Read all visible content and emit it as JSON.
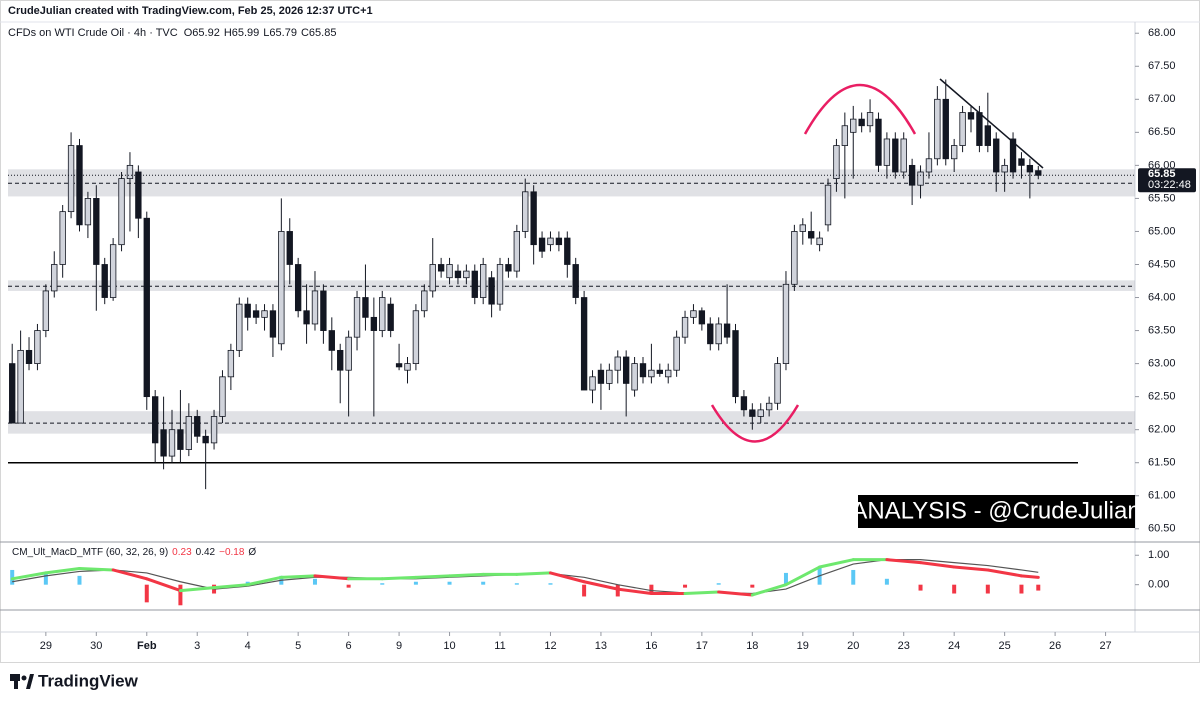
{
  "header": "CrudeJulian created with TradingView.com, Feb 25, 2026 12:37 UTC+1",
  "footer": {
    "brand": "TradingView"
  },
  "chart_data": {
    "type": "candlestick",
    "symbol": "CFDs on WTI Crude Oil · 4h · TVC",
    "ohlc_fields": [
      "O",
      "H",
      "L",
      "C"
    ],
    "ohlc": [
      [
        63.0,
        63.3,
        62.1,
        62.1
      ],
      [
        62.1,
        63.5,
        62.1,
        63.2
      ],
      [
        63.2,
        63.4,
        62.9,
        63.0
      ],
      [
        63.0,
        63.6,
        62.9,
        63.5
      ],
      [
        63.5,
        64.2,
        63.4,
        64.1
      ],
      [
        64.1,
        64.7,
        64.0,
        64.5
      ],
      [
        64.5,
        65.4,
        64.3,
        65.3
      ],
      [
        65.3,
        66.5,
        65.2,
        66.3
      ],
      [
        66.3,
        66.4,
        65.0,
        65.1
      ],
      [
        65.1,
        65.6,
        64.9,
        65.5
      ],
      [
        65.5,
        65.7,
        63.8,
        64.5
      ],
      [
        64.5,
        64.6,
        63.9,
        64.0
      ],
      [
        64.0,
        64.9,
        63.95,
        64.8
      ],
      [
        64.8,
        65.9,
        64.7,
        65.8
      ],
      [
        65.8,
        66.2,
        65.0,
        66.0
      ],
      [
        65.9,
        66.0,
        64.9,
        65.2
      ],
      [
        65.2,
        65.3,
        62.3,
        62.5
      ],
      [
        62.5,
        62.6,
        61.5,
        61.8
      ],
      [
        62.0,
        62.5,
        61.4,
        61.6
      ],
      [
        61.6,
        62.3,
        61.5,
        62.0
      ],
      [
        62.0,
        62.6,
        61.5,
        61.7
      ],
      [
        61.7,
        62.4,
        61.6,
        62.2
      ],
      [
        62.2,
        62.3,
        61.8,
        61.9
      ],
      [
        61.9,
        62.0,
        61.1,
        61.8
      ],
      [
        61.8,
        62.3,
        61.7,
        62.2
      ],
      [
        62.2,
        62.9,
        62.1,
        62.8
      ],
      [
        62.8,
        63.3,
        62.6,
        63.2
      ],
      [
        63.2,
        64.0,
        63.1,
        63.9
      ],
      [
        63.9,
        64.0,
        63.5,
        63.7
      ],
      [
        63.8,
        63.9,
        63.6,
        63.7
      ],
      [
        63.7,
        63.9,
        63.5,
        63.8
      ],
      [
        63.8,
        63.9,
        63.1,
        63.4
      ],
      [
        63.3,
        65.5,
        63.2,
        65.0
      ],
      [
        65.0,
        65.2,
        64.2,
        64.5
      ],
      [
        64.5,
        64.6,
        63.7,
        63.8
      ],
      [
        63.8,
        64.2,
        63.3,
        63.6
      ],
      [
        63.6,
        64.4,
        63.5,
        64.1
      ],
      [
        64.1,
        64.2,
        63.3,
        63.5
      ],
      [
        63.5,
        63.7,
        62.9,
        63.2
      ],
      [
        63.2,
        63.3,
        62.4,
        62.9
      ],
      [
        62.9,
        63.5,
        62.2,
        63.4
      ],
      [
        63.4,
        64.1,
        63.2,
        64.0
      ],
      [
        64.0,
        64.5,
        63.5,
        63.7
      ],
      [
        63.7,
        64.0,
        62.2,
        63.5
      ],
      [
        63.5,
        64.1,
        63.4,
        64.0
      ],
      [
        63.9,
        64.0,
        63.4,
        63.5
      ],
      [
        63.0,
        63.3,
        62.9,
        62.95
      ],
      [
        62.9,
        63.1,
        62.7,
        63.0
      ],
      [
        63.0,
        63.9,
        62.9,
        63.8
      ],
      [
        63.8,
        64.2,
        63.7,
        64.1
      ],
      [
        64.1,
        64.9,
        64.0,
        64.5
      ],
      [
        64.5,
        64.6,
        64.3,
        64.4
      ],
      [
        64.3,
        64.6,
        64.2,
        64.5
      ],
      [
        64.4,
        64.5,
        64.2,
        64.3
      ],
      [
        64.3,
        64.5,
        64.2,
        64.4
      ],
      [
        64.4,
        64.5,
        63.9,
        64.0
      ],
      [
        64.0,
        64.6,
        63.9,
        64.5
      ],
      [
        64.3,
        64.4,
        63.7,
        63.9
      ],
      [
        63.9,
        64.6,
        63.8,
        64.5
      ],
      [
        64.5,
        64.6,
        64.3,
        64.4
      ],
      [
        64.4,
        65.1,
        64.3,
        65.0
      ],
      [
        65.0,
        65.8,
        64.9,
        65.6
      ],
      [
        65.6,
        65.7,
        64.5,
        64.8
      ],
      [
        64.9,
        65.0,
        64.6,
        64.7
      ],
      [
        64.8,
        65.0,
        64.7,
        64.9
      ],
      [
        64.9,
        65.0,
        64.7,
        64.8
      ],
      [
        64.9,
        65.0,
        64.3,
        64.5
      ],
      [
        64.5,
        64.6,
        63.9,
        64.0
      ],
      [
        64.0,
        64.1,
        62.6,
        62.6
      ],
      [
        62.6,
        62.9,
        62.4,
        62.8
      ],
      [
        62.9,
        63.0,
        62.3,
        62.7
      ],
      [
        62.7,
        63.0,
        62.6,
        62.9
      ],
      [
        62.9,
        63.2,
        62.7,
        63.1
      ],
      [
        63.1,
        63.2,
        62.2,
        62.7
      ],
      [
        62.6,
        63.1,
        62.5,
        63.0
      ],
      [
        63.0,
        63.1,
        62.7,
        62.8
      ],
      [
        62.8,
        63.3,
        62.7,
        62.9
      ],
      [
        62.9,
        63.0,
        62.8,
        62.85
      ],
      [
        62.8,
        63.0,
        62.7,
        62.9
      ],
      [
        62.9,
        63.5,
        62.8,
        63.4
      ],
      [
        63.4,
        63.8,
        63.3,
        63.7
      ],
      [
        63.7,
        63.9,
        63.6,
        63.8
      ],
      [
        63.8,
        63.85,
        63.5,
        63.6
      ],
      [
        63.6,
        63.7,
        63.2,
        63.3
      ],
      [
        63.3,
        63.7,
        63.2,
        63.6
      ],
      [
        63.6,
        64.2,
        63.3,
        63.4
      ],
      [
        63.5,
        63.6,
        62.4,
        62.5
      ],
      [
        62.5,
        62.6,
        62.2,
        62.3
      ],
      [
        62.3,
        62.4,
        62.0,
        62.2
      ],
      [
        62.2,
        62.4,
        62.1,
        62.3
      ],
      [
        62.3,
        62.5,
        62.2,
        62.4
      ],
      [
        62.4,
        63.1,
        62.3,
        63.0
      ],
      [
        63.0,
        64.4,
        62.9,
        64.2
      ],
      [
        64.2,
        65.1,
        64.1,
        65.0
      ],
      [
        65.0,
        65.2,
        64.8,
        65.1
      ],
      [
        65.0,
        65.3,
        64.8,
        64.9
      ],
      [
        64.8,
        65.0,
        64.7,
        64.9
      ],
      [
        65.1,
        65.8,
        65.0,
        65.7
      ],
      [
        65.8,
        66.4,
        65.6,
        66.3
      ],
      [
        66.3,
        66.8,
        65.5,
        66.6
      ],
      [
        66.5,
        66.9,
        65.8,
        66.7
      ],
      [
        66.7,
        66.8,
        66.5,
        66.6
      ],
      [
        66.6,
        67.0,
        66.5,
        66.8
      ],
      [
        66.7,
        66.8,
        65.9,
        66.0
      ],
      [
        66.0,
        66.5,
        65.8,
        66.4
      ],
      [
        66.4,
        66.5,
        65.8,
        65.9
      ],
      [
        65.9,
        66.5,
        65.8,
        66.4
      ],
      [
        66.0,
        66.1,
        65.4,
        65.7
      ],
      [
        65.7,
        66.0,
        65.5,
        65.9
      ],
      [
        65.9,
        66.5,
        65.8,
        66.1
      ],
      [
        66.1,
        67.2,
        66.0,
        67.0
      ],
      [
        67.0,
        67.3,
        66.0,
        66.1
      ],
      [
        66.1,
        66.4,
        65.9,
        66.3
      ],
      [
        66.3,
        66.9,
        66.2,
        66.8
      ],
      [
        66.8,
        66.9,
        66.5,
        66.7
      ],
      [
        66.8,
        66.9,
        66.2,
        66.3
      ],
      [
        66.6,
        67.1,
        66.2,
        66.3
      ],
      [
        66.4,
        66.5,
        65.6,
        65.9
      ],
      [
        65.9,
        66.1,
        65.6,
        66.0
      ],
      [
        66.4,
        66.5,
        65.8,
        65.9
      ],
      [
        66.1,
        66.2,
        65.8,
        66.0
      ],
      [
        66.0,
        66.1,
        65.5,
        65.9
      ],
      [
        65.92,
        65.99,
        65.79,
        65.85
      ]
    ],
    "up_color": "#d1d4dc",
    "down_color": "#131722",
    "countdown": "03:22:48",
    "xlim": [
      -0.5,
      133.5
    ],
    "xticks": [
      {
        "value": 4,
        "label": "29"
      },
      {
        "value": 10,
        "label": "30"
      },
      {
        "value": 16,
        "label": "Feb"
      },
      {
        "value": 22,
        "label": "3"
      },
      {
        "value": 28,
        "label": "4"
      },
      {
        "value": 34,
        "label": "5"
      },
      {
        "value": 40,
        "label": "6"
      },
      {
        "value": 46,
        "label": "9"
      },
      {
        "value": 52,
        "label": "10"
      },
      {
        "value": 58,
        "label": "11"
      },
      {
        "value": 64,
        "label": "12"
      },
      {
        "value": 70,
        "label": "13"
      },
      {
        "value": 76,
        "label": "16"
      },
      {
        "value": 82,
        "label": "17"
      },
      {
        "value": 88,
        "label": "18"
      },
      {
        "value": 94,
        "label": "19"
      },
      {
        "value": 100,
        "label": "20"
      },
      {
        "value": 106,
        "label": "23"
      },
      {
        "value": 112,
        "label": "24"
      },
      {
        "value": 118,
        "label": "25"
      },
      {
        "value": 124,
        "label": "26"
      },
      {
        "value": 130,
        "label": "27"
      }
    ],
    "ylim": [
      60.3,
      68.17
    ],
    "yticks": [
      {
        "value": 60.5,
        "label": "60.50"
      },
      {
        "value": 61,
        "label": "61.00"
      },
      {
        "value": 61.5,
        "label": "61.50"
      },
      {
        "value": 62,
        "label": "62.00"
      },
      {
        "value": 62.5,
        "label": "62.50"
      },
      {
        "value": 63,
        "label": "63.00"
      },
      {
        "value": 63.5,
        "label": "63.50"
      },
      {
        "value": 64,
        "label": "64.00"
      },
      {
        "value": 64.5,
        "label": "64.50"
      },
      {
        "value": 65,
        "label": "65.00"
      },
      {
        "value": 65.5,
        "label": "65.50"
      },
      {
        "value": 66,
        "label": "66.00"
      },
      {
        "value": 66.5,
        "label": "66.50"
      },
      {
        "value": 67,
        "label": "67.00"
      },
      {
        "value": 67.5,
        "label": "67.50"
      },
      {
        "value": 68,
        "label": "68.00"
      }
    ],
    "grid": false,
    "zones": [
      {
        "low": 65.53,
        "high": 65.94,
        "mid": 65.73
      },
      {
        "low": 64.1,
        "high": 64.26,
        "mid": 64.17
      },
      {
        "low": 61.94,
        "high": 62.28,
        "mid": 62.1
      }
    ],
    "support": 61.5,
    "annotation": "ANALYSIS - @CrudeJulian",
    "indicator": {
      "name": "CM_Ult_MacD_MTF (60, 32, 26, 9)",
      "legend_values": [
        0.23,
        0.42,
        {
          "value": -0.18,
          "label": "−0.18"
        }
      ],
      "legend_suffix": "Ø",
      "x": [
        0,
        4,
        8,
        12,
        16,
        20,
        24,
        28,
        32,
        36,
        40,
        44,
        48,
        52,
        56,
        60,
        64,
        68,
        72,
        76,
        80,
        84,
        88,
        92,
        96,
        100,
        104,
        108,
        112,
        116,
        120,
        122
      ],
      "macd": [
        0.2,
        0.4,
        0.55,
        0.5,
        0.2,
        -0.2,
        -0.1,
        0.0,
        0.25,
        0.3,
        0.2,
        0.2,
        0.25,
        0.3,
        0.35,
        0.35,
        0.4,
        0.1,
        -0.15,
        -0.3,
        -0.3,
        -0.25,
        -0.35,
        0.0,
        0.6,
        0.85,
        0.85,
        0.75,
        0.6,
        0.5,
        0.3,
        0.25
      ],
      "signal": [
        0.1,
        0.3,
        0.45,
        0.5,
        0.4,
        0.1,
        -0.15,
        -0.05,
        0.15,
        0.25,
        0.25,
        0.2,
        0.2,
        0.25,
        0.3,
        0.35,
        0.38,
        0.25,
        0.0,
        -0.2,
        -0.28,
        -0.27,
        -0.3,
        -0.15,
        0.3,
        0.7,
        0.85,
        0.85,
        0.75,
        0.65,
        0.5,
        0.42
      ],
      "histogram": [
        0.5,
        0.4,
        0.3,
        0,
        -0.6,
        -0.7,
        -0.3,
        0.1,
        0.3,
        0.2,
        -0.1,
        0.05,
        0.1,
        0.1,
        0.1,
        0.05,
        0.05,
        -0.4,
        -0.4,
        -0.3,
        -0.1,
        0.05,
        -0.1,
        0.4,
        0.6,
        0.5,
        0.2,
        -0.2,
        -0.3,
        -0.3,
        -0.3,
        -0.2
      ],
      "up_color": "#6ee86e",
      "down_color": "#f23645",
      "signal_color": "#555555",
      "hist_up_color": "#5bc8f5",
      "hist_down_color": "#f23645",
      "ylim": [
        -0.86,
        1.45
      ],
      "yticks": [
        {
          "value": 1,
          "label": "1.00"
        },
        {
          "value": 0,
          "label": "0.00"
        }
      ]
    }
  }
}
